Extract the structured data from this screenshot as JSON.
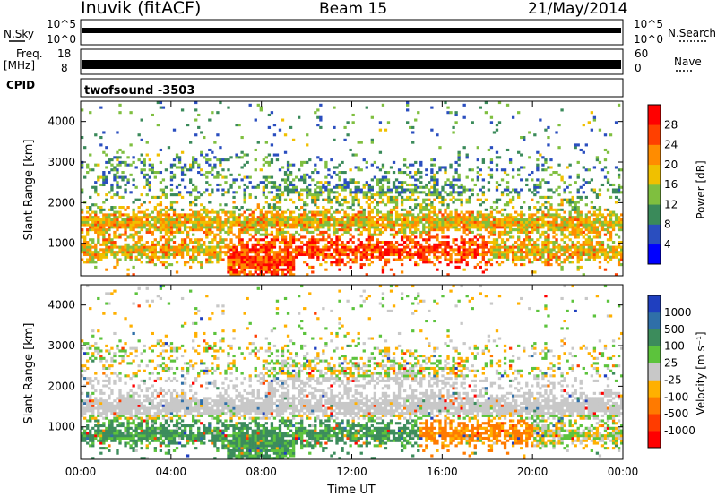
{
  "header": {
    "station": "Inuvik (fitACF)",
    "beam": "Beam 15",
    "date": "21/May/2014"
  },
  "top_panels": {
    "noise": {
      "left_label": "N.Sky",
      "right_label": "N.Search",
      "left_ticks": [
        "10^5",
        "10^0"
      ],
      "right_ticks": [
        "10^5",
        "10^0"
      ]
    },
    "freq": {
      "left_label_1": "Freq.",
      "left_label_2": "[MHz]",
      "right_label": "Nave",
      "left_ticks": [
        "18",
        "8"
      ],
      "right_ticks": [
        "60",
        "0"
      ]
    },
    "cpid": {
      "label": "CPID",
      "value": "twofsound -3503"
    }
  },
  "chart_data": [
    {
      "type": "heatmap",
      "ylabel": "Slant Range [km]",
      "ylim": [
        200,
        4500
      ],
      "y_ticks": [
        1000,
        2000,
        3000,
        4000
      ],
      "xlim": [
        0,
        24
      ],
      "x_ticks": [
        0,
        4,
        8,
        12,
        16,
        20,
        24
      ],
      "x_tick_labels": [
        "00:00",
        "04:00",
        "08:00",
        "12:00",
        "16:00",
        "20:00",
        "00:00"
      ],
      "colorbar": {
        "label": "Power [dB]",
        "tick_labels": [
          "4",
          "8",
          "12",
          "16",
          "20",
          "24",
          "28"
        ],
        "colors": [
          "#0000ff",
          "#2a4ebf",
          "#3a8a5a",
          "#7fbf3f",
          "#f0c000",
          "#ff8c00",
          "#ff4000",
          "#ff0000"
        ]
      }
    },
    {
      "type": "heatmap",
      "ylabel": "Slant Range [km]",
      "ylim": [
        200,
        4500
      ],
      "y_ticks": [
        1000,
        2000,
        3000,
        4000
      ],
      "xlim": [
        0,
        24
      ],
      "x_ticks": [
        0,
        4,
        8,
        12,
        16,
        20,
        24
      ],
      "x_tick_labels": [
        "00:00",
        "04:00",
        "08:00",
        "12:00",
        "16:00",
        "20:00",
        "00:00"
      ],
      "xlabel": "Time UT",
      "colorbar": {
        "label": "Velocity [m s⁻¹]",
        "tick_labels": [
          "1000",
          "500",
          "100",
          "25",
          "-25",
          "-100",
          "-500",
          "-1000"
        ],
        "colors": [
          "#1f3fbf",
          "#2f6fa8",
          "#3c8c5c",
          "#5cc33c",
          "#c8c8c8",
          "#ffb000",
          "#ff7a00",
          "#ff3c00",
          "#ff0000"
        ]
      }
    }
  ]
}
